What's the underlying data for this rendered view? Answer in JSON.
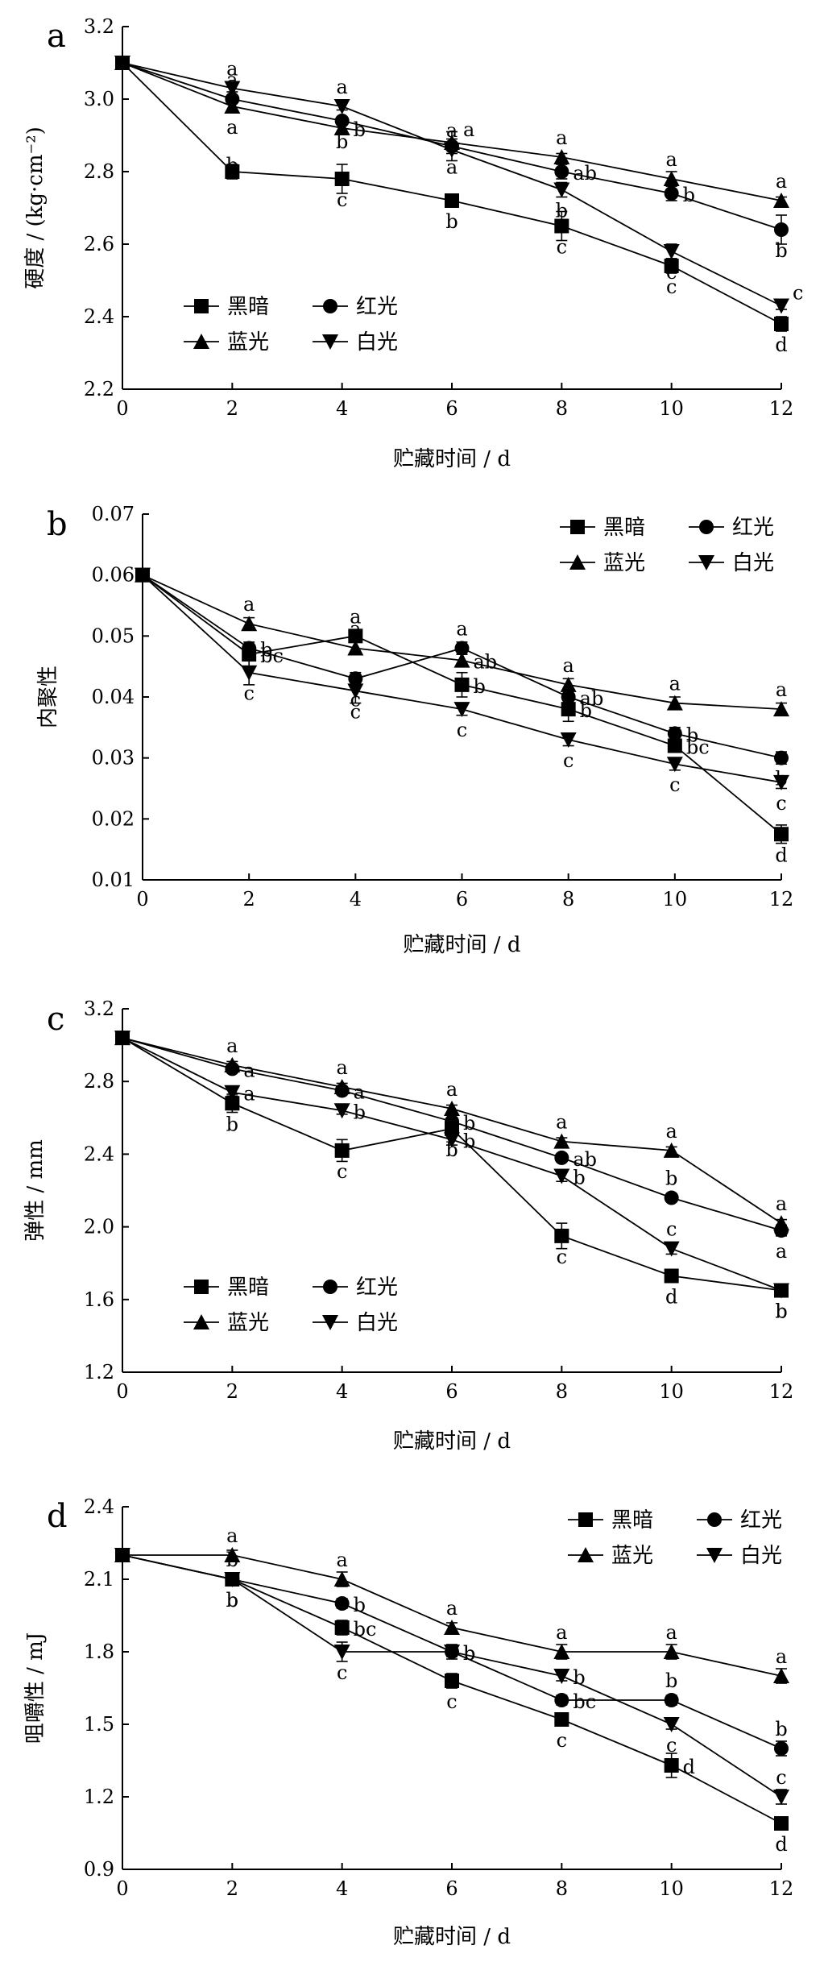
{
  "chart_data": [
    {
      "type": "line",
      "panel_letter": "a",
      "xlabel": "贮藏时间 / d",
      "ylabel": "硬度 / (kg·cm⁻²)",
      "x": [
        0,
        2,
        4,
        6,
        8,
        10,
        12
      ],
      "xlim": [
        0,
        12
      ],
      "ylim": [
        2.2,
        3.2
      ],
      "x_ticks": [
        "0",
        "2",
        "4",
        "6",
        "8",
        "10",
        "12"
      ],
      "y_ticks": [
        "2.2",
        "2.4",
        "2.6",
        "2.8",
        "3.0",
        "3.2"
      ],
      "legend_position": "bottom-left",
      "series": [
        {
          "name": "黑暗",
          "marker": "square",
          "values": [
            3.1,
            2.8,
            2.78,
            2.72,
            2.65,
            2.54,
            2.38
          ],
          "errors": [
            0,
            0.02,
            0.04,
            0.01,
            0.04,
            0.02,
            0.02
          ],
          "labels": [
            "",
            "b",
            "c",
            "b",
            "c",
            "c",
            "d"
          ]
        },
        {
          "name": "红光",
          "marker": "circle",
          "values": [
            3.1,
            3.0,
            2.94,
            2.87,
            2.8,
            2.74,
            2.64
          ],
          "errors": [
            0,
            0.01,
            0.01,
            0.04,
            0.02,
            0.02,
            0.04
          ],
          "labels": [
            "",
            "a",
            "b",
            "a",
            "ab",
            "b",
            "b"
          ]
        },
        {
          "name": "蓝光",
          "marker": "triangle-up",
          "values": [
            3.1,
            2.98,
            2.92,
            2.88,
            2.84,
            2.78,
            2.72
          ],
          "errors": [
            0,
            0.01,
            0.01,
            0.01,
            0.01,
            0.02,
            0.01
          ],
          "labels": [
            "",
            "a",
            "b",
            "a",
            "a",
            "a",
            "a"
          ]
        },
        {
          "name": "白光",
          "marker": "triangle-down",
          "values": [
            3.1,
            3.03,
            2.98,
            2.86,
            2.75,
            2.58,
            2.43
          ],
          "errors": [
            0,
            0.01,
            0.01,
            0.01,
            0.02,
            0.02,
            0.01
          ],
          "labels": [
            "",
            "a",
            "a",
            "a",
            "b",
            "c",
            "c"
          ]
        }
      ]
    },
    {
      "type": "line",
      "panel_letter": "b",
      "xlabel": "贮藏时间 / d",
      "ylabel": "内聚性",
      "x": [
        0,
        2,
        4,
        6,
        8,
        10,
        12
      ],
      "xlim": [
        0,
        12
      ],
      "ylim": [
        0.01,
        0.07
      ],
      "x_ticks": [
        "0",
        "2",
        "4",
        "6",
        "8",
        "10",
        "12"
      ],
      "y_ticks": [
        "0.01",
        "0.02",
        "0.03",
        "0.04",
        "0.05",
        "0.06",
        "0.07"
      ],
      "legend_position": "top-right",
      "series": [
        {
          "name": "黑暗",
          "marker": "square",
          "values": [
            0.06,
            0.047,
            0.05,
            0.042,
            0.038,
            0.032,
            0.0175
          ],
          "errors": [
            0,
            0.001,
            0.001,
            0.002,
            0.002,
            0.001,
            0.0015
          ],
          "labels": [
            "",
            "bc",
            "a",
            "b",
            "b",
            "bc",
            "d"
          ]
        },
        {
          "name": "红光",
          "marker": "circle",
          "values": [
            0.06,
            0.048,
            0.043,
            0.048,
            0.04,
            0.034,
            0.03
          ],
          "errors": [
            0,
            0.001,
            0.001,
            0.001,
            0.001,
            0.001,
            0.001
          ],
          "labels": [
            "",
            "b",
            "c",
            "a",
            "ab",
            "b",
            "b"
          ]
        },
        {
          "name": "蓝光",
          "marker": "triangle-up",
          "values": [
            0.06,
            0.052,
            0.048,
            0.046,
            0.042,
            0.039,
            0.038
          ],
          "errors": [
            0,
            0.001,
            0.001,
            0.001,
            0.001,
            0.001,
            0.001
          ],
          "labels": [
            "",
            "a",
            "a",
            "ab",
            "a",
            "a",
            "a"
          ]
        },
        {
          "name": "白光",
          "marker": "triangle-down",
          "values": [
            0.06,
            0.044,
            0.041,
            0.038,
            0.033,
            0.029,
            0.026
          ],
          "errors": [
            0,
            0.002,
            0.002,
            0.001,
            0.001,
            0.001,
            0.001
          ],
          "labels": [
            "",
            "c",
            "c",
            "c",
            "c",
            "c",
            "c"
          ]
        }
      ]
    },
    {
      "type": "line",
      "panel_letter": "c",
      "xlabel": "贮藏时间 / d",
      "ylabel": "弹性 / mm",
      "x": [
        0,
        2,
        4,
        6,
        8,
        10,
        12
      ],
      "xlim": [
        0,
        12
      ],
      "ylim": [
        1.2,
        3.2
      ],
      "x_ticks": [
        "0",
        "2",
        "4",
        "6",
        "8",
        "10",
        "12"
      ],
      "y_ticks": [
        "1.2",
        "1.6",
        "2.0",
        "2.4",
        "2.8",
        "3.2"
      ],
      "legend_position": "bottom-left",
      "series": [
        {
          "name": "黑暗",
          "marker": "square",
          "values": [
            3.04,
            2.68,
            2.42,
            2.54,
            1.95,
            1.73,
            1.65
          ],
          "errors": [
            0,
            0.05,
            0.06,
            0.03,
            0.07,
            0.03,
            0.02
          ],
          "labels": [
            "",
            "b",
            "c",
            "b",
            "c",
            "d",
            "b"
          ]
        },
        {
          "name": "红光",
          "marker": "circle",
          "values": [
            3.04,
            2.87,
            2.75,
            2.58,
            2.38,
            2.16,
            1.98
          ],
          "errors": [
            0,
            0.02,
            0.02,
            0.02,
            0.02,
            0.02,
            0.03
          ],
          "labels": [
            "",
            "a",
            "a",
            "b",
            "ab",
            "b",
            "a"
          ]
        },
        {
          "name": "蓝光",
          "marker": "triangle-up",
          "values": [
            3.04,
            2.89,
            2.77,
            2.65,
            2.47,
            2.42,
            2.02
          ],
          "errors": [
            0,
            0.02,
            0.02,
            0.02,
            0.02,
            0.02,
            0.02
          ],
          "labels": [
            "",
            "a",
            "a",
            "a",
            "a",
            "a",
            "a"
          ]
        },
        {
          "name": "白光",
          "marker": "triangle-down",
          "values": [
            3.04,
            2.74,
            2.64,
            2.48,
            2.28,
            1.88,
            1.65
          ],
          "errors": [
            0,
            0.02,
            0.02,
            0.03,
            0.03,
            0.03,
            0.02
          ],
          "labels": [
            "",
            "a",
            "b",
            "b",
            "b",
            "c",
            "b"
          ]
        }
      ]
    },
    {
      "type": "line",
      "panel_letter": "d",
      "xlabel": "贮藏时间 / d",
      "ylabel": "咀嚼性 / mJ",
      "x": [
        0,
        2,
        4,
        6,
        8,
        10,
        12
      ],
      "xlim": [
        0,
        12
      ],
      "ylim": [
        0.9,
        2.4
      ],
      "x_ticks": [
        "0",
        "2",
        "4",
        "6",
        "8",
        "10",
        "12"
      ],
      "y_ticks": [
        "0.9",
        "1.2",
        "1.5",
        "1.8",
        "2.1",
        "2.4"
      ],
      "legend_position": "top-right",
      "series": [
        {
          "name": "黑暗",
          "marker": "square",
          "values": [
            2.2,
            2.1,
            1.9,
            1.68,
            1.52,
            1.33,
            1.09
          ],
          "errors": [
            0,
            0.02,
            0.03,
            0.03,
            0.02,
            0.05,
            0.02
          ],
          "labels": [
            "",
            "b",
            "bc",
            "c",
            "c",
            "d",
            "d"
          ]
        },
        {
          "name": "红光",
          "marker": "circle",
          "values": [
            2.2,
            2.1,
            2.0,
            1.8,
            1.6,
            1.6,
            1.4
          ],
          "errors": [
            0,
            0.02,
            0.02,
            0.02,
            0.02,
            0.02,
            0.03
          ],
          "labels": [
            "",
            "b",
            "b",
            "b",
            "bc",
            "b",
            "b"
          ]
        },
        {
          "name": "蓝光",
          "marker": "triangle-up",
          "values": [
            2.2,
            2.2,
            2.1,
            1.9,
            1.8,
            1.8,
            1.7
          ],
          "errors": [
            0,
            0.02,
            0.03,
            0.02,
            0.03,
            0.03,
            0.03
          ],
          "labels": [
            "",
            "a",
            "a",
            "a",
            "a",
            "a",
            "a"
          ]
        },
        {
          "name": "白光",
          "marker": "triangle-down",
          "values": [
            2.2,
            2.1,
            1.8,
            1.8,
            1.7,
            1.5,
            1.2
          ],
          "errors": [
            0,
            0.02,
            0.04,
            0.03,
            0.02,
            0.02,
            0.03
          ],
          "labels": [
            "",
            "b",
            "c",
            "b",
            "b",
            "c",
            "c"
          ]
        }
      ]
    }
  ]
}
